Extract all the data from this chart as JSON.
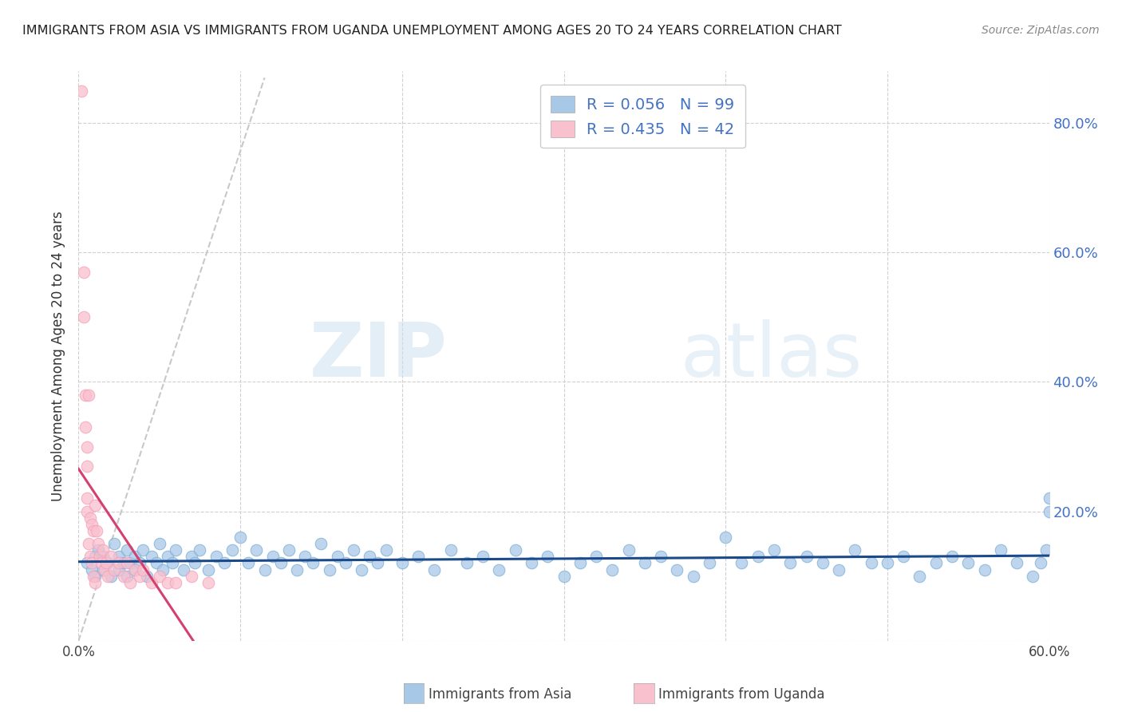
{
  "title": "IMMIGRANTS FROM ASIA VS IMMIGRANTS FROM UGANDA UNEMPLOYMENT AMONG AGES 20 TO 24 YEARS CORRELATION CHART",
  "source": "Source: ZipAtlas.com",
  "ylabel": "Unemployment Among Ages 20 to 24 years",
  "xlim": [
    0.0,
    0.6
  ],
  "ylim": [
    0.0,
    0.88
  ],
  "asia_color": "#a8c8e8",
  "asia_edge_color": "#7bafd4",
  "uganda_color": "#f9c0ce",
  "uganda_edge_color": "#f4a0b8",
  "asia_line_color": "#1a4a8a",
  "uganda_line_color": "#d44070",
  "diag_line_color": "#c8c8c8",
  "R_asia": 0.056,
  "N_asia": 99,
  "R_uganda": 0.435,
  "N_uganda": 42,
  "watermark_zip": "ZIP",
  "watermark_atlas": "atlas",
  "background_color": "#ffffff",
  "grid_color": "#d0d0d0",
  "right_axis_color": "#4472c4",
  "title_color": "#222222",
  "source_color": "#888888",
  "legend_text_color": "#4472c4"
}
